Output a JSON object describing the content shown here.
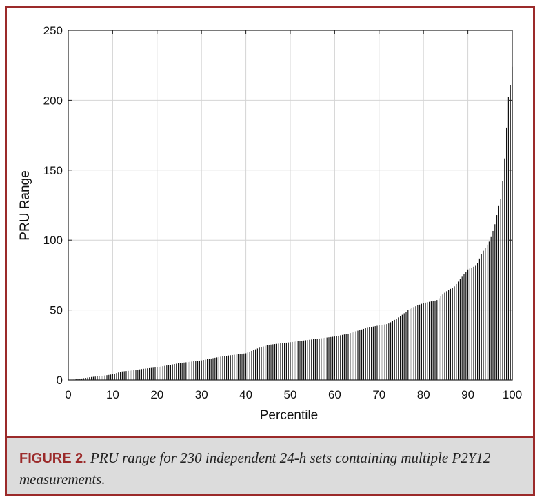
{
  "chart_data": {
    "type": "bar",
    "xlabel": "Percentile",
    "ylabel": "PRU Range",
    "xlim": [
      0,
      100
    ],
    "ylim": [
      0,
      250
    ],
    "xticks": [
      0,
      10,
      20,
      30,
      40,
      50,
      60,
      70,
      80,
      90,
      100
    ],
    "yticks": [
      0,
      50,
      100,
      150,
      200,
      250
    ],
    "grid": true,
    "bar_color": "#111111",
    "anchor_points": [
      [
        0.4,
        0
      ],
      [
        3,
        1
      ],
      [
        5,
        2
      ],
      [
        8,
        3
      ],
      [
        10,
        4
      ],
      [
        12,
        6
      ],
      [
        15,
        7
      ],
      [
        17,
        8
      ],
      [
        20,
        9
      ],
      [
        25,
        12
      ],
      [
        30,
        14
      ],
      [
        35,
        17
      ],
      [
        40,
        19
      ],
      [
        43,
        23
      ],
      [
        45,
        25
      ],
      [
        50,
        27
      ],
      [
        55,
        29
      ],
      [
        60,
        31
      ],
      [
        63,
        33
      ],
      [
        65,
        35
      ],
      [
        67,
        37
      ],
      [
        70,
        39
      ],
      [
        72,
        40
      ],
      [
        75,
        46
      ],
      [
        77,
        51
      ],
      [
        80,
        55
      ],
      [
        83,
        57
      ],
      [
        84,
        60
      ],
      [
        85,
        63
      ],
      [
        87,
        67
      ],
      [
        89,
        75
      ],
      [
        90,
        79
      ],
      [
        92,
        82
      ],
      [
        93,
        90
      ],
      [
        95,
        100
      ],
      [
        96,
        110
      ],
      [
        97,
        125
      ],
      [
        97.5,
        131
      ],
      [
        98,
        148
      ],
      [
        98.5,
        168
      ],
      [
        99,
        200
      ],
      [
        99.5,
        209
      ],
      [
        100,
        224
      ]
    ]
  },
  "caption": {
    "label": "FIGURE 2.",
    "text": "PRU range for 230 independent 24-h sets containing multiple P2Y12 measurements."
  }
}
